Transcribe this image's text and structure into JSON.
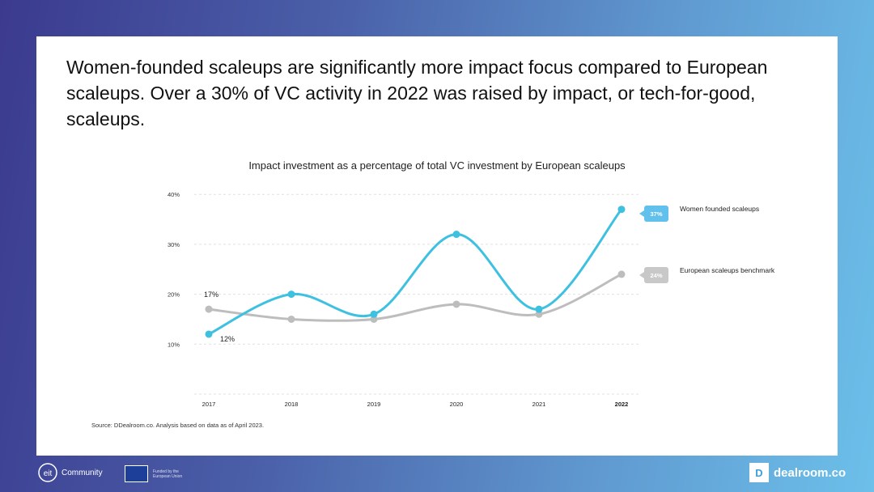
{
  "headline": "Women-founded scaleups are significantly more impact focus compared to European scaleups. Over a 30% of VC activity in 2022 was raised by impact, or tech-for-good, scaleups.",
  "source": "Source: DDealroom.co. Analysis based on data as of April 2023.",
  "footer": {
    "community": "Community",
    "eu_text": "Funded by the European Union",
    "brand": "dealroom.co"
  },
  "colors": {
    "women": "#3ec0e0",
    "europe": "#bdbdbd",
    "badge_women": "#62c1ec",
    "badge_europe": "#c8c8c8"
  },
  "chart_data": {
    "type": "line",
    "title": "Impact investment as a percentage of total VC investment by European scaleups",
    "xlabel": "",
    "ylabel": "",
    "categories": [
      "2017",
      "2018",
      "2019",
      "2020",
      "2021",
      "2022"
    ],
    "ylim": [
      0,
      40
    ],
    "yticks": [
      10,
      20,
      30,
      40
    ],
    "ytick_labels": [
      "10%",
      "20%",
      "30%",
      "40%"
    ],
    "grid": true,
    "legend_placement": "right",
    "series": [
      {
        "name": "Women founded scaleups",
        "values": [
          12,
          20,
          16,
          32,
          17,
          37
        ],
        "end_label": "37%",
        "start_label": "12%"
      },
      {
        "name": "European scaleups benchmark",
        "values": [
          17,
          15,
          15,
          18,
          16,
          24
        ],
        "end_label": "24%",
        "start_label": "17%"
      }
    ]
  }
}
